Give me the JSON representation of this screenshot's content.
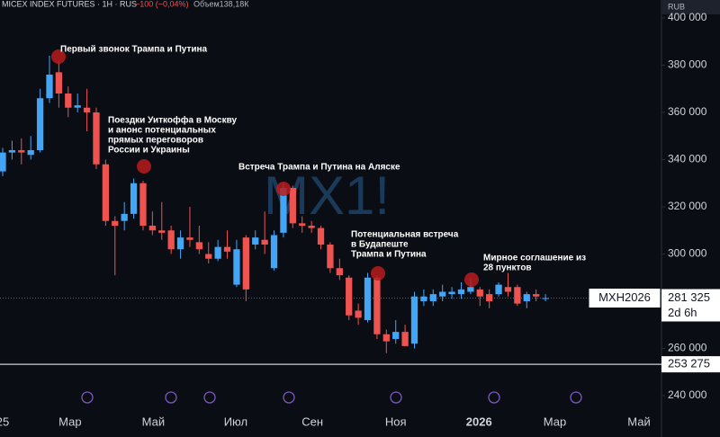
{
  "chart_data": {
    "type": "candlestick",
    "title": "MICEX INDEX FUTURES · 1H · RUS",
    "change": "−100 (−0,04%)",
    "volume": "Объем138,18К",
    "currency": "RUB",
    "watermark": "MX1!",
    "up_color": "#42a5f5",
    "down_color": "#ef5350",
    "open": [
      335000,
      343000,
      344000,
      342000,
      344000,
      366000,
      377000,
      368000,
      362000,
      362000,
      360000,
      338000,
      314000,
      314000,
      317000,
      330000,
      312000,
      310000,
      310000,
      302000,
      307000,
      305000,
      300000,
      298000,
      303000,
      287000,
      307000,
      304000,
      306000,
      294000,
      309000,
      328000,
      313000,
      312000,
      311000,
      304000,
      294000,
      290000,
      276000,
      272000,
      290000,
      266000,
      264000,
      267000,
      262000,
      280000,
      280000,
      282000,
      283000,
      283000,
      284000,
      285000,
      283000,
      283000,
      286000,
      286000,
      280000,
      283000,
      281300
    ],
    "high": [
      345000,
      348000,
      349000,
      350000,
      370000,
      384000,
      382000,
      371000,
      368000,
      370000,
      362000,
      340000,
      316000,
      322000,
      332000,
      331000,
      318000,
      322000,
      312000,
      310000,
      320000,
      312000,
      305000,
      306000,
      310000,
      306000,
      308000,
      310000,
      318000,
      310000,
      330000,
      329000,
      316000,
      314000,
      312000,
      305000,
      298000,
      291000,
      279000,
      292000,
      291000,
      268000,
      272000,
      270000,
      284000,
      285000,
      285000,
      287000,
      286000,
      288000,
      290000,
      286000,
      285000,
      288000,
      292000,
      287000,
      284000,
      285000,
      283000
    ],
    "low": [
      333000,
      340000,
      338000,
      340000,
      343000,
      364000,
      362000,
      358000,
      360000,
      352000,
      336000,
      312000,
      291000,
      310000,
      315000,
      310000,
      308000,
      306000,
      300000,
      298000,
      303000,
      300000,
      296000,
      297000,
      298000,
      286000,
      280000,
      302000,
      300000,
      293000,
      307000,
      311000,
      309000,
      309000,
      302000,
      292000,
      289000,
      272000,
      270000,
      271000,
      264000,
      258000,
      262000,
      261000,
      260000,
      278000,
      278000,
      280000,
      281000,
      281000,
      283000,
      278000,
      277000,
      282000,
      282000,
      278000,
      277000,
      280000,
      280000
    ],
    "close": [
      343000,
      344000,
      343000,
      344000,
      366000,
      376000,
      368000,
      362000,
      363000,
      360000,
      338000,
      314000,
      312000,
      317000,
      330000,
      312000,
      310000,
      309000,
      302000,
      307000,
      306000,
      302000,
      298000,
      303000,
      301000,
      302000,
      285000,
      307000,
      304000,
      308000,
      328000,
      313000,
      312000,
      311000,
      304000,
      294000,
      291000,
      274000,
      273000,
      290000,
      266000,
      263000,
      267000,
      261000,
      282000,
      282000,
      283000,
      284000,
      284000,
      285000,
      286000,
      282000,
      280000,
      287000,
      284000,
      279000,
      283000,
      282000,
      281325
    ],
    "xlim": [
      0,
      70.4
    ],
    "xticks": [
      {
        "value": 0,
        "label": "25"
      },
      {
        "value": 7.2,
        "label": "Мар"
      },
      {
        "value": 16.1,
        "label": "Май"
      },
      {
        "value": 24.9,
        "label": "Июл"
      },
      {
        "value": 33.1,
        "label": "Сен"
      },
      {
        "value": 42,
        "label": "Ноя"
      },
      {
        "value": 50.9,
        "label": "2026"
      },
      {
        "value": 59,
        "label": "Мар"
      },
      {
        "value": 68,
        "label": "Май"
      }
    ],
    "ylim": [
      235000,
      400000
    ],
    "yticks": [
      {
        "value": 240000,
        "label": "240 000"
      },
      {
        "value": 260000,
        "label": "260 000"
      },
      {
        "value": 280000,
        "label": "280 000"
      },
      {
        "value": 300000,
        "label": "300 000"
      },
      {
        "value": 320000,
        "label": "320 000"
      },
      {
        "value": 340000,
        "label": "340 000"
      },
      {
        "value": 360000,
        "label": "360 000"
      },
      {
        "value": 380000,
        "label": "380 000"
      },
      {
        "value": 400000,
        "label": "400 000"
      }
    ],
    "symbol": "MXH2026",
    "last_price": {
      "value": 281325,
      "label": "281 325"
    },
    "countdown": "2d 6h",
    "line_price": {
      "value": 253275,
      "label": "253 275"
    },
    "annotations": [
      [
        "Первый звонок Трампа и Путина"
      ],
      [
        "Поездки Уиткоффа в Москву",
        "и анонс потенциальных",
        "прямых переговоров",
        "России и Украины"
      ],
      [
        "Встреча Трампа и Путина на Аляске"
      ],
      [
        "Потенциальная встреча",
        "в Будапеште",
        "Трампа и Путина"
      ],
      [
        "Мирное соглашение из",
        "28 пунктов"
      ]
    ]
  }
}
